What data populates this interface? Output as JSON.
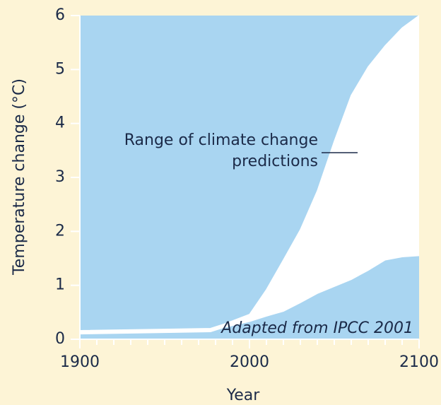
{
  "chart_data": {
    "type": "area-range",
    "xlabel": "Year",
    "ylabel": "Temperature change (°C)",
    "annotation": [
      "Range of climate change",
      "predictions"
    ],
    "source": "Adapted from IPCC 2001",
    "x": [
      1900,
      1977,
      1985,
      2000,
      2010,
      2020,
      2030,
      2040,
      2050,
      2060,
      2070,
      2080,
      2090,
      2100
    ],
    "series": [
      {
        "color": "#ffffff",
        "values": [
          0.1,
          0.14,
          0.22,
          0.33,
          0.43,
          0.52,
          0.68,
          0.85,
          0.98,
          1.11,
          1.28,
          1.47,
          1.53,
          1.55
        ]
      },
      {
        "color": "#ffffff",
        "values": [
          0.16,
          0.2,
          0.28,
          0.46,
          0.92,
          1.47,
          2.03,
          2.75,
          3.67,
          4.52,
          5.05,
          5.44,
          5.77,
          6.0
        ]
      }
    ],
    "band_color": "#ffffff",
    "background_color": "#a9d5f1",
    "xlim": [
      1900,
      2100
    ],
    "ylim": [
      0,
      6
    ],
    "xticks": [
      1900,
      2000,
      2100
    ],
    "xminorticks": [
      1910,
      1920,
      1930,
      1940,
      1950,
      1960,
      1970,
      1980,
      1990,
      2010,
      2020,
      2030,
      2040,
      2050,
      2060,
      2070,
      2080,
      2090
    ],
    "yticks": [
      0,
      1,
      2,
      3,
      4,
      5,
      6
    ]
  }
}
